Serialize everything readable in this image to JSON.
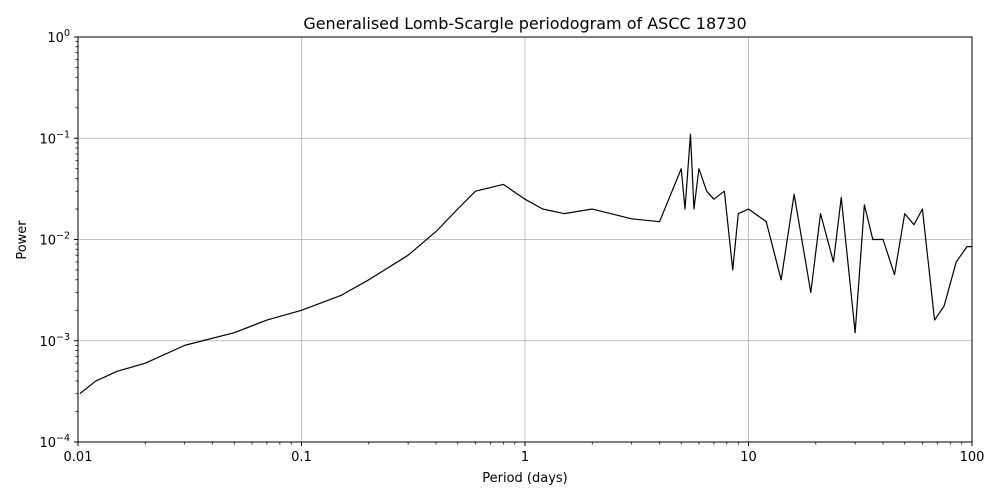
{
  "chart_data": {
    "type": "line",
    "title": "Generalised Lomb-Scargle periodogram of ASCC 18730",
    "xlabel": "Period (days)",
    "ylabel": "Power",
    "x_scale": "log",
    "y_scale": "log",
    "xlim": [
      0.01,
      100
    ],
    "ylim": [
      0.0001,
      1
    ],
    "grid": true,
    "line_color": "#000000",
    "x_ticks": [
      {
        "value": 0.01,
        "label": "0.01"
      },
      {
        "value": 0.1,
        "label": "0.1"
      },
      {
        "value": 1,
        "label": "1"
      },
      {
        "value": 10,
        "label": "10"
      },
      {
        "value": 100,
        "label": "100"
      }
    ],
    "y_ticks": [
      {
        "value": 0.0001,
        "base": "10",
        "exp": "−4"
      },
      {
        "value": 0.001,
        "base": "10",
        "exp": "−3"
      },
      {
        "value": 0.01,
        "base": "10",
        "exp": "−2"
      },
      {
        "value": 0.1,
        "base": "10",
        "exp": "−1"
      },
      {
        "value": 1,
        "base": "10",
        "exp": "0"
      }
    ],
    "series": [
      {
        "x": [
          0.0102,
          0.012,
          0.015,
          0.02,
          0.03,
          0.05,
          0.07,
          0.1,
          0.15,
          0.2,
          0.3,
          0.4,
          0.5,
          0.6,
          0.8,
          1.0,
          1.2,
          1.5,
          2.0,
          3.0,
          4.0,
          5.0,
          5.2,
          5.5,
          5.7,
          6.0,
          6.5,
          7.0,
          7.8,
          8.5,
          9.0,
          10.0,
          12.0,
          14.0,
          16.0,
          19.0,
          21.0,
          24.0,
          26.0,
          30.0,
          33.0,
          36.0,
          40.0,
          45.0,
          50.0,
          55.0,
          60.0,
          68.0,
          75.0,
          85.0,
          95.0,
          100.0
        ],
        "y": [
          0.0003,
          0.0004,
          0.0005,
          0.0006,
          0.0009,
          0.0012,
          0.0016,
          0.002,
          0.0028,
          0.004,
          0.007,
          0.012,
          0.02,
          0.03,
          0.035,
          0.025,
          0.02,
          0.018,
          0.02,
          0.016,
          0.015,
          0.05,
          0.02,
          0.11,
          0.02,
          0.05,
          0.03,
          0.025,
          0.03,
          0.005,
          0.018,
          0.02,
          0.015,
          0.004,
          0.028,
          0.003,
          0.018,
          0.006,
          0.026,
          0.0012,
          0.022,
          0.01,
          0.01,
          0.0045,
          0.018,
          0.014,
          0.02,
          0.0016,
          0.0022,
          0.006,
          0.0085,
          0.0085
        ]
      }
    ]
  }
}
